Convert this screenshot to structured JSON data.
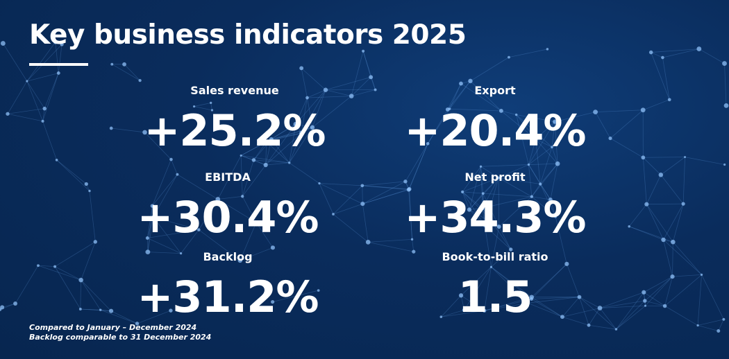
{
  "title": "Key business indicators 2025",
  "background": {
    "color": "#0a2c5c",
    "decoration": "network-2025"
  },
  "kpis": [
    {
      "label": "Sales revenue",
      "value": "+25.2%"
    },
    {
      "label": "Export",
      "value": "+20.4%"
    },
    {
      "label": "EBITDA",
      "value": "+30.4%"
    },
    {
      "label": "Net profit",
      "value": "+34.3%"
    },
    {
      "label": "Backlog",
      "value": "+31.2%"
    },
    {
      "label": "Book-to-bill ratio",
      "value": "1.5"
    }
  ],
  "footnotes": [
    "Compared to January – December 2024",
    "Backlog comparable to 31 December 2024"
  ]
}
